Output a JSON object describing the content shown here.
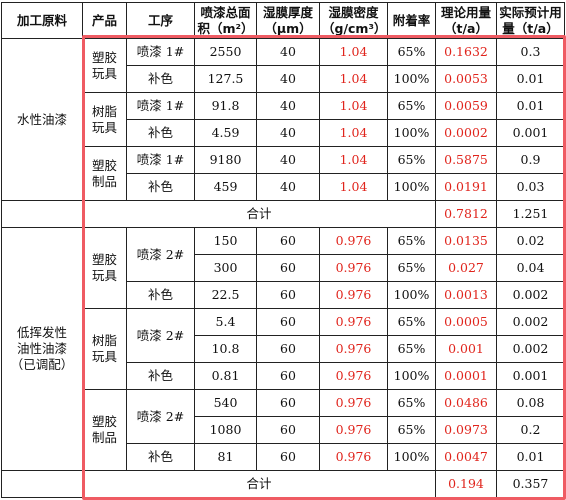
{
  "headers": {
    "material": "加工原料",
    "product": "产品",
    "process": "工序",
    "area": "喷漆总面积（m²）",
    "thickness": "湿膜厚度（μm）",
    "density": "湿膜密度（g/cm³）",
    "adhesion": "附着率",
    "theory": "理论用量（t/a）",
    "actual": "实际预计用量（t/a）"
  },
  "groups": [
    {
      "material": "水性油漆",
      "products": [
        {
          "name": [
            "塑胶",
            "玩具"
          ],
          "rows": [
            {
              "process": "喷漆 1#",
              "area": "2550",
              "thickness": "40",
              "density": "1.04",
              "adhesion": "65%",
              "theory": "0.1632",
              "actual": "0.3"
            },
            {
              "process": "补色",
              "area": "127.5",
              "thickness": "40",
              "density": "1.04",
              "adhesion": "100%",
              "theory": "0.0053",
              "actual": "0.01"
            }
          ]
        },
        {
          "name": [
            "树脂",
            "玩具"
          ],
          "rows": [
            {
              "process": "喷漆 1#",
              "area": "91.8",
              "thickness": "40",
              "density": "1.04",
              "adhesion": "65%",
              "theory": "0.0059",
              "actual": "0.01"
            },
            {
              "process": "补色",
              "area": "4.59",
              "thickness": "40",
              "density": "1.04",
              "adhesion": "100%",
              "theory": "0.0002",
              "actual": "0.001"
            }
          ]
        },
        {
          "name": [
            "塑胶",
            "制品"
          ],
          "rows": [
            {
              "process": "喷漆 1#",
              "area": "9180",
              "thickness": "40",
              "density": "1.04",
              "adhesion": "65%",
              "theory": "0.5875",
              "actual": "0.9"
            },
            {
              "process": "补色",
              "area": "459",
              "thickness": "40",
              "density": "1.04",
              "adhesion": "100%",
              "theory": "0.0191",
              "actual": "0.03"
            }
          ]
        }
      ],
      "total": {
        "label": "合计",
        "theory": "0.7812",
        "actual": "1.251"
      }
    },
    {
      "material": [
        "低挥发性",
        "油性油漆",
        "（已调配）"
      ],
      "products": [
        {
          "name": [
            "塑胶",
            "玩具"
          ],
          "spray": "喷漆 2#",
          "rows": [
            {
              "area": "150",
              "thickness": "60",
              "density": "0.976",
              "adhesion": "65%",
              "theory": "0.0135",
              "actual": "0.02"
            },
            {
              "area": "300",
              "thickness": "60",
              "density": "0.976",
              "adhesion": "65%",
              "theory": "0.027",
              "actual": "0.04"
            },
            {
              "process": "补色",
              "area": "22.5",
              "thickness": "60",
              "density": "0.976",
              "adhesion": "100%",
              "theory": "0.0013",
              "actual": "0.002"
            }
          ]
        },
        {
          "name": [
            "树脂",
            "玩具"
          ],
          "spray": "喷漆 2#",
          "rows": [
            {
              "area": "5.4",
              "thickness": "60",
              "density": "0.976",
              "adhesion": "65%",
              "theory": "0.0005",
              "actual": "0.002"
            },
            {
              "area": "10.8",
              "thickness": "60",
              "density": "0.976",
              "adhesion": "65%",
              "theory": "0.001",
              "actual": "0.002"
            },
            {
              "process": "补色",
              "area": "0.81",
              "thickness": "60",
              "density": "0.976",
              "adhesion": "100%",
              "theory": "0.0001",
              "actual": "0.001"
            }
          ]
        },
        {
          "name": [
            "塑胶",
            "制品"
          ],
          "spray": "喷漆 2#",
          "rows": [
            {
              "area": "540",
              "thickness": "60",
              "density": "0.976",
              "adhesion": "65%",
              "theory": "0.0486",
              "actual": "0.08"
            },
            {
              "area": "1080",
              "thickness": "60",
              "density": "0.976",
              "adhesion": "65%",
              "theory": "0.0973",
              "actual": "0.2"
            },
            {
              "process": "补色",
              "area": "81",
              "thickness": "60",
              "density": "0.976",
              "adhesion": "100%",
              "theory": "0.0047",
              "actual": "0.01"
            }
          ]
        }
      ],
      "total": {
        "label": "合计",
        "theory": "0.194",
        "actual": "0.357"
      }
    }
  ],
  "colors": {
    "highlight_text": "#e0241c",
    "outline": "#ef5b63"
  }
}
